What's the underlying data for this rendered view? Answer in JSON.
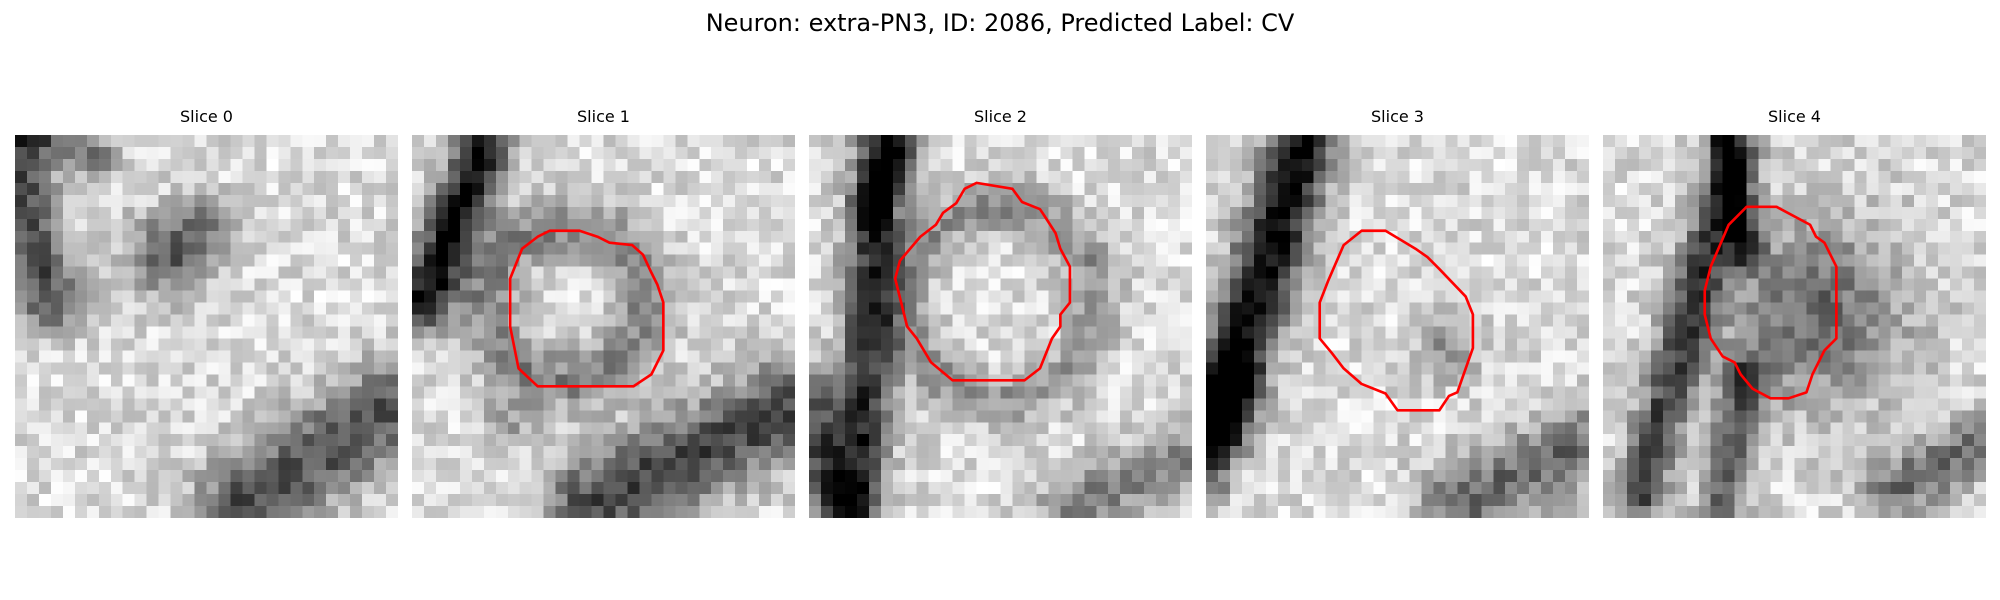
{
  "figure": {
    "title": "Neuron: extra-PN3, ID: 2086, Predicted Label: CV"
  },
  "panels": [
    {
      "title": "Slice 0",
      "has_contour": false
    },
    {
      "title": "Slice 1",
      "has_contour": true
    },
    {
      "title": "Slice 2",
      "has_contour": true
    },
    {
      "title": "Slice 3",
      "has_contour": true
    },
    {
      "title": "Slice 4",
      "has_contour": true
    }
  ],
  "colors": {
    "contour": "#ff0000",
    "background": "#ffffff"
  },
  "image": {
    "colormap": "grayscale",
    "grid_size": 32
  }
}
